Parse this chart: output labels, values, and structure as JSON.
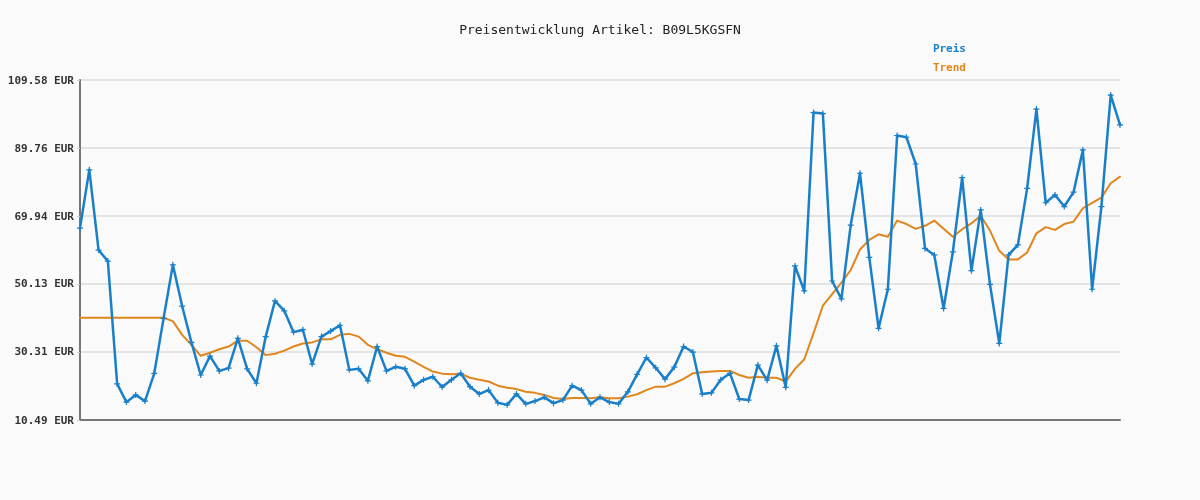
{
  "chart_data": {
    "type": "line",
    "title": "Preisentwicklung Artikel: B09L5KGSFN",
    "categories": [
      null,
      null,
      null,
      null,
      null,
      null,
      null,
      null,
      null,
      null,
      null,
      null,
      null,
      null,
      null,
      null,
      null,
      null,
      null,
      null,
      null,
      null,
      null,
      null,
      null,
      null,
      null,
      null,
      null,
      null,
      null,
      null,
      null,
      null,
      null,
      null,
      null,
      null,
      null,
      null,
      null,
      null,
      null,
      null,
      null,
      null,
      null,
      null,
      null,
      null,
      null,
      null,
      null,
      null,
      null,
      null,
      null,
      null,
      null,
      null,
      null,
      null,
      null,
      null,
      null,
      null,
      null,
      null,
      null,
      null,
      null,
      null,
      null,
      null,
      null,
      null,
      null,
      null,
      null,
      null,
      null,
      null,
      null,
      null,
      null,
      null,
      null,
      null,
      null,
      null,
      null,
      null,
      null,
      null,
      null,
      null,
      null,
      null,
      null,
      null,
      null,
      null,
      null,
      null,
      null,
      null,
      null,
      null,
      null,
      null,
      null,
      null,
      null
    ],
    "series": [
      {
        "name": "Preis",
        "color": "#1a7fc9",
        "values": [
          66.4,
          83.4,
          60.0,
          56.8,
          21.0,
          15.7,
          17.8,
          16.0,
          24.1,
          40.1,
          55.7,
          43.7,
          33.1,
          23.6,
          29.1,
          24.8,
          25.6,
          34.3,
          25.4,
          21.2,
          34.8,
          45.2,
          42.3,
          36.1,
          36.8,
          26.8,
          34.8,
          36.4,
          38.1,
          25.1,
          25.4,
          21.9,
          31.9,
          24.8,
          26.0,
          25.4,
          20.5,
          22.2,
          23.1,
          20.1,
          22.2,
          24.1,
          20.2,
          18.1,
          19.2,
          15.5,
          14.9,
          18.1,
          15.2,
          16.0,
          17.1,
          15.4,
          16.3,
          20.5,
          19.2,
          15.2,
          17.1,
          15.7,
          15.2,
          18.7,
          23.8,
          28.7,
          25.7,
          22.4,
          25.9,
          31.9,
          30.3,
          18.1,
          18.4,
          22.2,
          24.1,
          16.6,
          16.3,
          26.5,
          22.1,
          32.1,
          20.0,
          55.4,
          48.1,
          100.1,
          99.8,
          51.0,
          45.8,
          67.3,
          82.4,
          57.9,
          37.2,
          48.6,
          93.4,
          92.9,
          85.1,
          60.5,
          58.6,
          43.0,
          59.5,
          81.1,
          54.0,
          71.7,
          50.0,
          32.8,
          58.6,
          61.5,
          78.0,
          101.1,
          73.8,
          76.1,
          72.7,
          76.9,
          89.2,
          48.6,
          72.7,
          105.2,
          96.5
        ]
      },
      {
        "name": "Trend",
        "color": "#e0861c",
        "marker": "none",
        "values": [
          40.3,
          40.3,
          40.3,
          40.3,
          40.3,
          40.3,
          40.3,
          40.3,
          40.3,
          40.3,
          39.3,
          35.3,
          32.4,
          29.2,
          30.1,
          31.1,
          31.9,
          33.6,
          33.6,
          31.7,
          29.4,
          29.8,
          30.7,
          31.9,
          32.8,
          33.1,
          34.0,
          34.0,
          35.3,
          35.6,
          34.8,
          32.4,
          31.1,
          30.1,
          29.2,
          28.9,
          27.5,
          26.0,
          24.6,
          24.0,
          23.8,
          24.0,
          22.8,
          22.2,
          21.7,
          20.5,
          19.9,
          19.5,
          18.7,
          18.4,
          17.8,
          16.9,
          16.6,
          16.9,
          16.9,
          16.8,
          17.1,
          16.8,
          16.8,
          17.3,
          18.0,
          19.2,
          20.2,
          20.2,
          21.2,
          22.5,
          24.1,
          24.4,
          24.6,
          24.8,
          24.8,
          23.6,
          22.8,
          23.1,
          22.8,
          22.8,
          21.7,
          25.4,
          28.2,
          35.8,
          43.8,
          47.2,
          50.5,
          54.2,
          60.2,
          63.0,
          64.6,
          63.9,
          68.6,
          67.6,
          66.2,
          67.1,
          68.6,
          66.2,
          63.9,
          66.1,
          67.8,
          70.0,
          65.7,
          59.8,
          57.3,
          57.3,
          59.3,
          64.9,
          66.7,
          65.9,
          67.6,
          68.3,
          72.2,
          73.8,
          75.3,
          79.5,
          81.4
        ]
      }
    ],
    "ylim": [
      10.49,
      109.58
    ],
    "yticks": [
      {
        "value": 10.49,
        "label": "10.49 EUR"
      },
      {
        "value": 30.31,
        "label": "30.31 EUR"
      },
      {
        "value": 50.13,
        "label": "50.13 EUR"
      },
      {
        "value": 69.94,
        "label": "69.94 EUR"
      },
      {
        "value": 89.76,
        "label": "89.76 EUR"
      },
      {
        "value": 109.58,
        "label": "109.58 EUR"
      }
    ],
    "grid": "y",
    "legend": "top right",
    "marker": "cross",
    "line_style": "solid"
  }
}
